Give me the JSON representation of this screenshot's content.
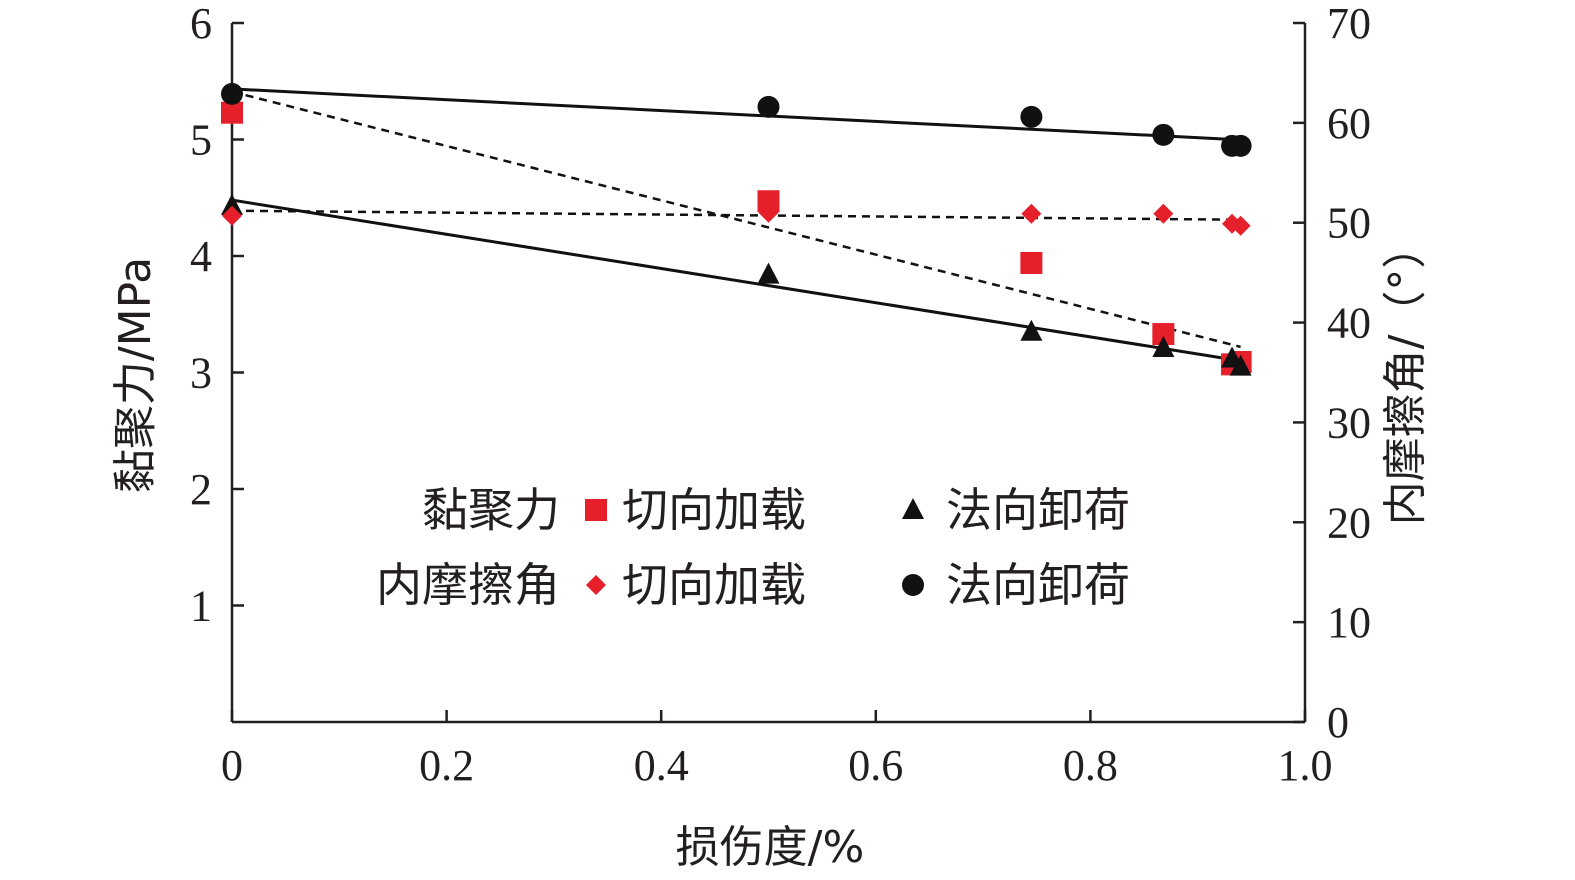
{
  "chart_data": {
    "type": "scatter",
    "xlabel": "损伤度/%",
    "ylabel_left": "黏聚力/MPa",
    "ylabel_right": "内摩擦角/（°）",
    "xlim": [
      0,
      1.0
    ],
    "ylim_left": [
      0,
      6
    ],
    "ylim_right": [
      0,
      70
    ],
    "x_ticks": [
      "0",
      "0.2",
      "0.4",
      "0.6",
      "0.8",
      "1.0"
    ],
    "y_left_ticks": [
      "1",
      "2",
      "3",
      "4",
      "5",
      "6"
    ],
    "y_right_ticks": [
      "0",
      "10",
      "20",
      "30",
      "40",
      "50",
      "60",
      "70"
    ],
    "legend": {
      "placement": "center",
      "rows": [
        {
          "group": "黏聚力",
          "items": [
            {
              "marker": "square",
              "label": "切向加载"
            },
            {
              "marker": "triangle",
              "label": "法向卸荷"
            }
          ]
        },
        {
          "group": "内摩擦角",
          "items": [
            {
              "marker": "diamond",
              "label": "切向加载"
            },
            {
              "marker": "circle",
              "label": "法向卸荷"
            }
          ]
        }
      ]
    },
    "series": [
      {
        "group": "黏聚力",
        "name": "切向加载",
        "axis": "left",
        "marker": "square",
        "color": "#e6202a",
        "points": [
          [
            0,
            5.23
          ],
          [
            0.5,
            4.47
          ],
          [
            0.745,
            3.94
          ],
          [
            0.868,
            3.33
          ],
          [
            0.932,
            3.07
          ],
          [
            0.94,
            3.09
          ]
        ],
        "fit": {
          "style": "dashed",
          "from": [
            0,
            5.41
          ],
          "to": [
            0.94,
            3.22
          ]
        }
      },
      {
        "group": "黏聚力",
        "name": "法向卸荷",
        "axis": "left",
        "marker": "triangle",
        "color": "#111111",
        "points": [
          [
            0,
            4.43
          ],
          [
            0.5,
            3.84
          ],
          [
            0.745,
            3.35
          ],
          [
            0.868,
            3.21
          ],
          [
            0.932,
            3.12
          ],
          [
            0.94,
            3.05
          ]
        ],
        "fit": {
          "style": "solid",
          "from": [
            0,
            4.48
          ],
          "to": [
            0.94,
            3.1
          ]
        }
      },
      {
        "group": "内摩擦角",
        "name": "切向加载",
        "axis": "right",
        "marker": "diamond",
        "color": "#e6202a",
        "points": [
          [
            0,
            50.7
          ],
          [
            0.5,
            51.0
          ],
          [
            0.745,
            50.9
          ],
          [
            0.868,
            50.9
          ],
          [
            0.932,
            49.9
          ],
          [
            0.94,
            49.7
          ]
        ],
        "fit": {
          "style": "dashed",
          "from": [
            0,
            51.2
          ],
          "to": [
            0.94,
            50.3
          ]
        }
      },
      {
        "group": "内摩擦角",
        "name": "法向卸荷",
        "axis": "right",
        "marker": "circle",
        "color": "#111111",
        "points": [
          [
            0,
            62.9
          ],
          [
            0.5,
            61.6
          ],
          [
            0.745,
            60.6
          ],
          [
            0.868,
            58.8
          ],
          [
            0.932,
            57.7
          ],
          [
            0.94,
            57.7
          ]
        ],
        "fit": {
          "style": "solid",
          "from": [
            0,
            63.4
          ],
          "to": [
            0.94,
            58.3
          ]
        }
      }
    ]
  }
}
